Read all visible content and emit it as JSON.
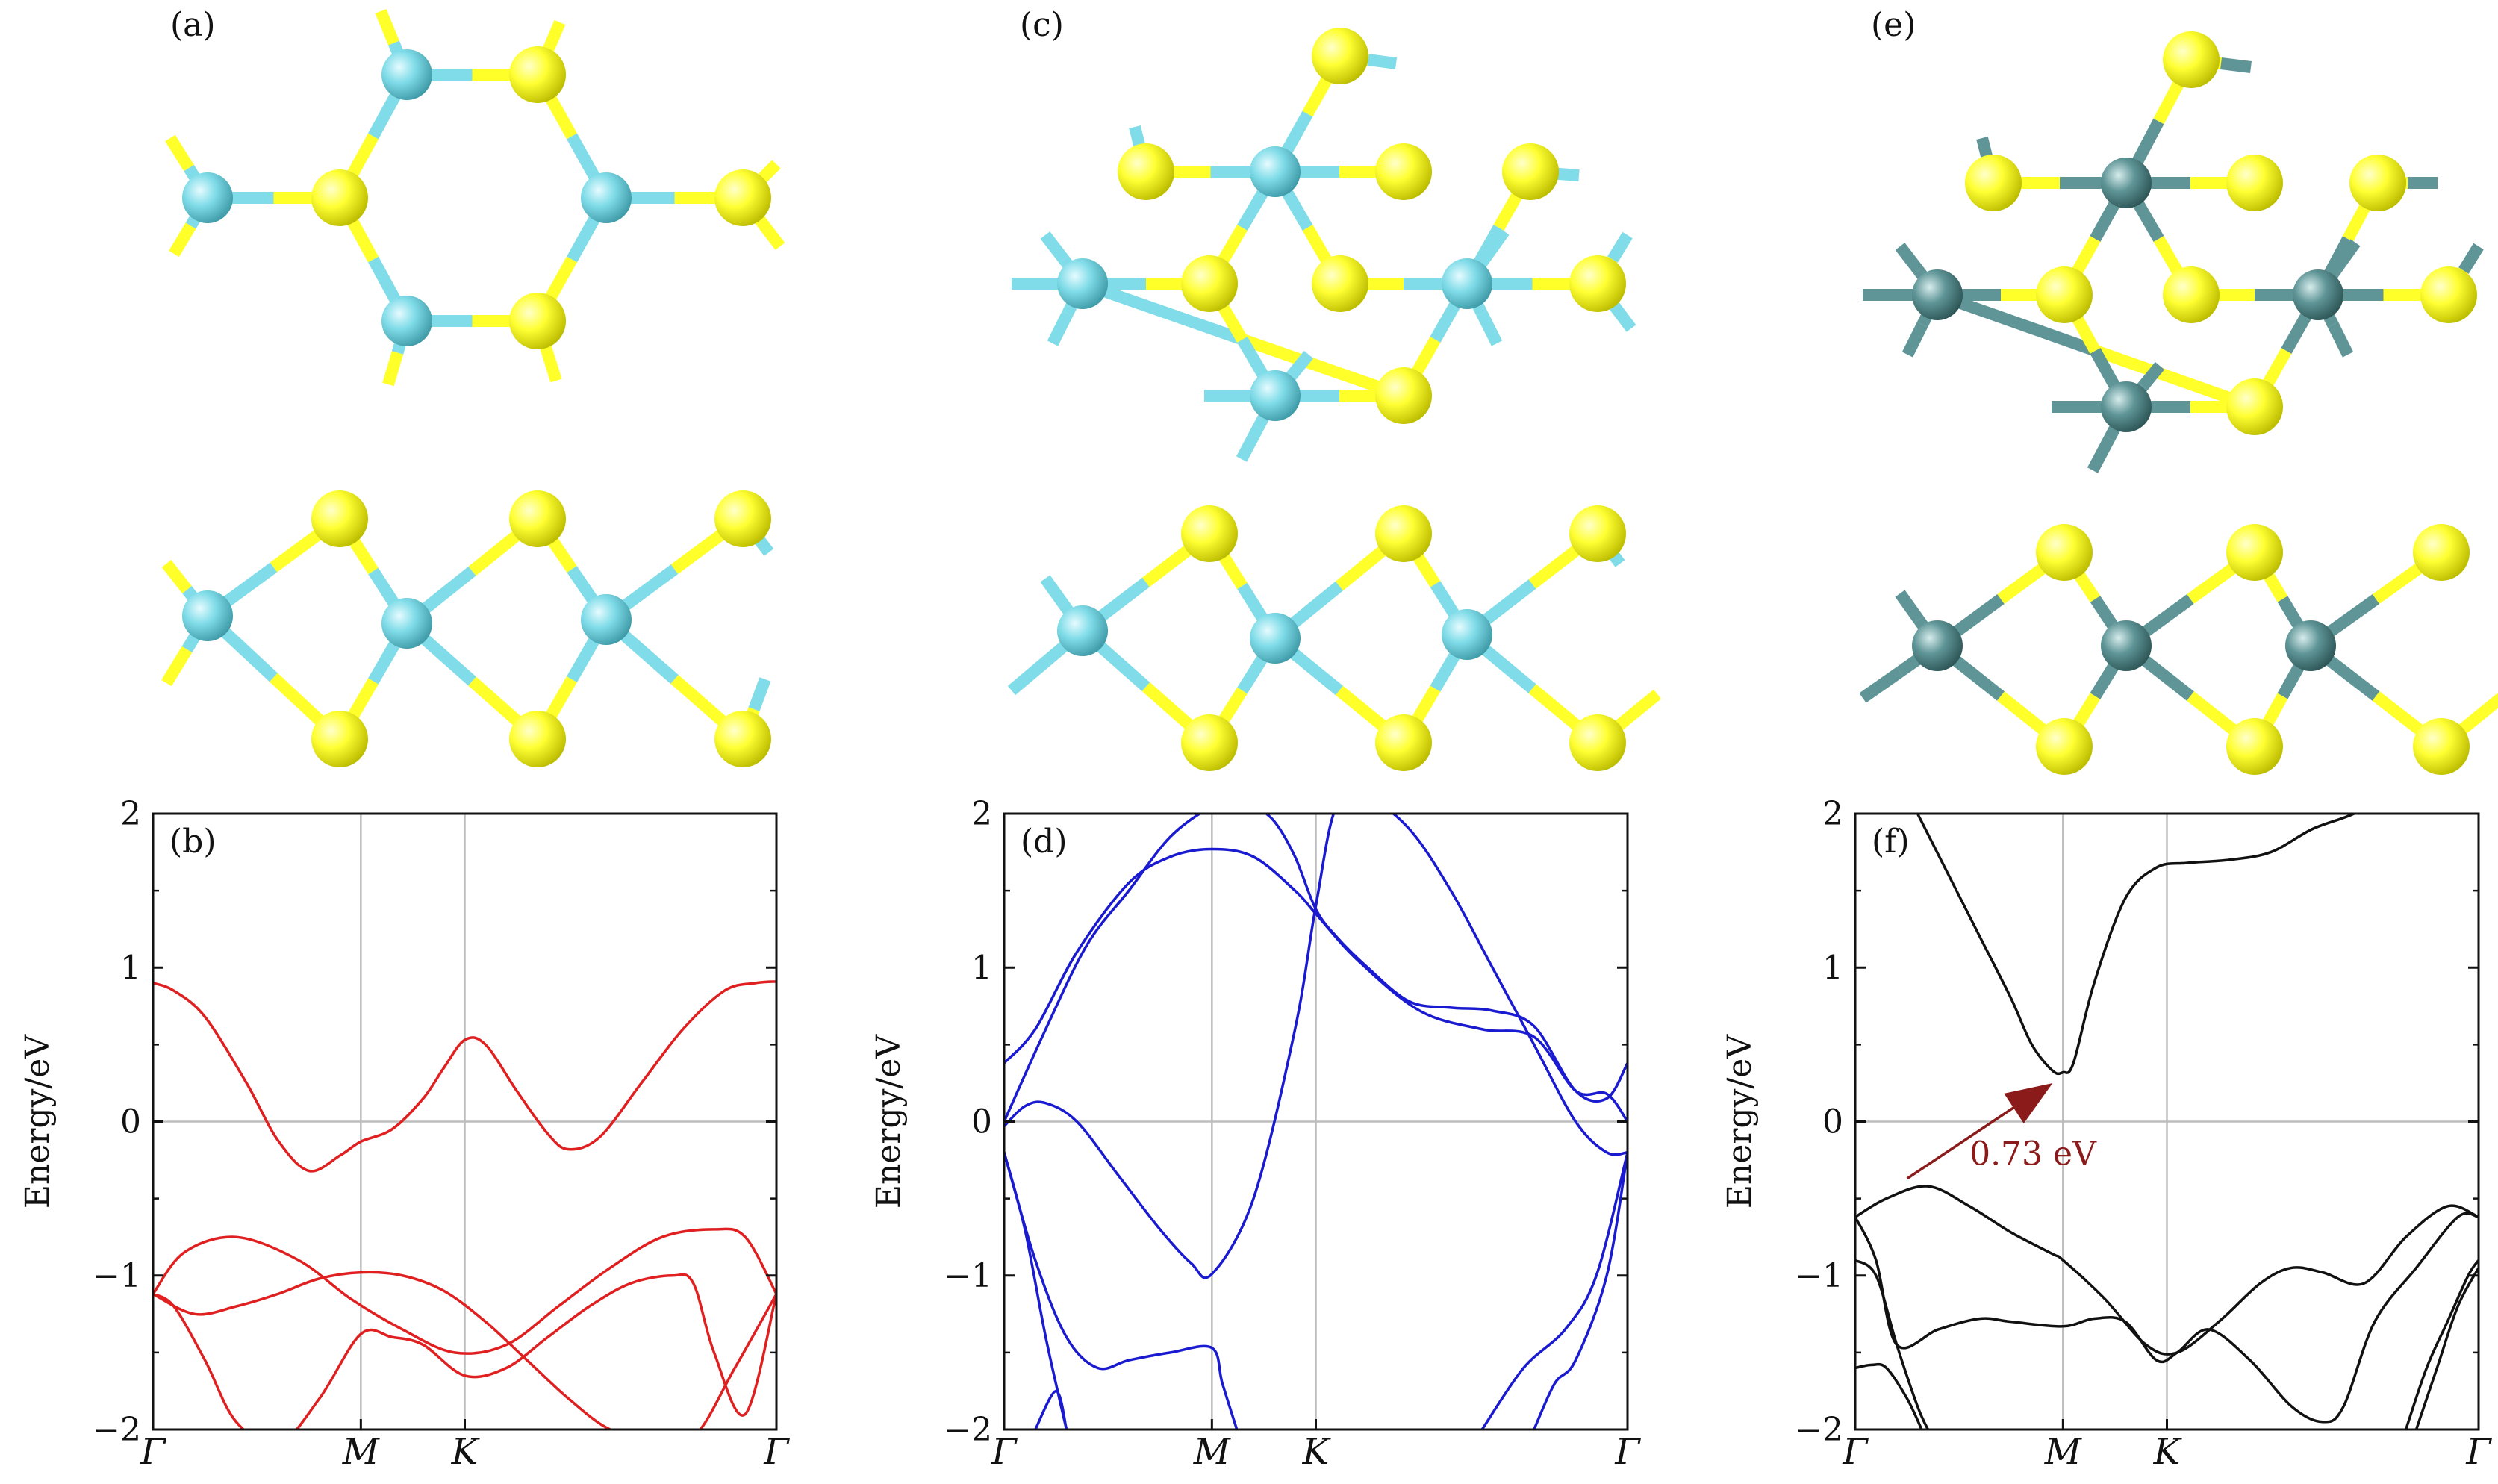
{
  "figure": {
    "panel_labels": [
      "(a)",
      "(c)",
      "(e)",
      "(b)",
      "(d)",
      "(f)"
    ],
    "structures": [
      {
        "label": "(a)",
        "metal_color": "#7fdce8",
        "chalcogen_color": "#ffff2a"
      },
      {
        "label": "(c)",
        "metal_color": "#7fdce8",
        "chalcogen_color": "#ffff2a"
      },
      {
        "label": "(e)",
        "metal_color": "#5f9597",
        "chalcogen_color": "#ffff2a"
      }
    ]
  },
  "chart_data": [
    {
      "type": "line",
      "panel": "(b)",
      "ylabel": "Energy/eV",
      "ylim": [
        -2,
        2
      ],
      "yticks": [
        -2,
        -1,
        0,
        1,
        2
      ],
      "ytick_labels": [
        "−2",
        "−1",
        "0",
        "1",
        "2"
      ],
      "xticks": [
        0,
        1,
        1.5,
        3
      ],
      "xtick_labels": [
        "Γ",
        "M",
        "K",
        "Γ"
      ],
      "xlim": [
        0,
        3
      ],
      "grid": true,
      "color": "#e02020",
      "series": [
        {
          "x": [
            0,
            0.1,
            0.25,
            0.45,
            0.6,
            0.75,
            0.9,
            1.0,
            1.15,
            1.3,
            1.4,
            1.5,
            1.6,
            1.75,
            1.9,
            2.0,
            2.15,
            2.35,
            2.55,
            2.75,
            2.9,
            3.0
          ],
          "y": [
            0.9,
            0.85,
            0.68,
            0.25,
            -0.12,
            -0.32,
            -0.22,
            -0.13,
            -0.05,
            0.15,
            0.35,
            0.53,
            0.5,
            0.2,
            -0.08,
            -0.18,
            -0.1,
            0.25,
            0.6,
            0.85,
            0.9,
            0.91
          ]
        },
        {
          "x": [
            0,
            0.15,
            0.4,
            0.7,
            0.95,
            1.2,
            1.45,
            1.7,
            1.95,
            2.2,
            2.45,
            2.7,
            2.85,
            3.0
          ],
          "y": [
            -1.12,
            -0.85,
            -0.75,
            -0.9,
            -1.15,
            -1.35,
            -1.5,
            -1.45,
            -1.2,
            -0.95,
            -0.75,
            -0.7,
            -0.75,
            -1.12
          ]
        },
        {
          "x": [
            0,
            0.2,
            0.4,
            0.6,
            0.8,
            1.0,
            1.2,
            1.4,
            1.6,
            1.8,
            2.0,
            2.2,
            2.4,
            2.6,
            2.8,
            3.0
          ],
          "y": [
            -1.12,
            -1.25,
            -1.2,
            -1.12,
            -1.02,
            -0.98,
            -1.0,
            -1.1,
            -1.3,
            -1.55,
            -1.8,
            -2.0,
            -2.05,
            -2.05,
            -1.6,
            -1.12
          ]
        },
        {
          "x": [
            0,
            0.1,
            0.25,
            0.4,
            0.6,
            0.8,
            1.0,
            1.15,
            1.3,
            1.5,
            1.7,
            1.9,
            2.1,
            2.3,
            2.5,
            2.6,
            2.7,
            2.85,
            3.0
          ],
          "y": [
            -1.12,
            -1.2,
            -1.55,
            -1.95,
            -2.1,
            -1.8,
            -1.38,
            -1.4,
            -1.45,
            -1.65,
            -1.6,
            -1.4,
            -1.2,
            -1.05,
            -1.0,
            -1.05,
            -1.5,
            -1.9,
            -1.12
          ]
        }
      ]
    },
    {
      "type": "line",
      "panel": "(d)",
      "ylabel": "Energy/eV",
      "ylim": [
        -2,
        2
      ],
      "yticks": [
        -2,
        -1,
        0,
        1,
        2
      ],
      "ytick_labels": [
        "−2",
        "−1",
        "0",
        "1",
        "2"
      ],
      "xticks": [
        0,
        1,
        1.5,
        3
      ],
      "xtick_labels": [
        "Γ",
        "M",
        "K",
        "Γ"
      ],
      "xlim": [
        0,
        3
      ],
      "grid": true,
      "color": "#1a1ad0",
      "series": [
        {
          "x": [
            0,
            0.15,
            0.35,
            0.6,
            0.8,
            1.0,
            1.2,
            1.4,
            1.5,
            1.7,
            2.0,
            2.3,
            2.55,
            2.75,
            2.9,
            3.0
          ],
          "y": [
            0.38,
            0.6,
            1.1,
            1.55,
            1.72,
            1.77,
            1.72,
            1.5,
            1.35,
            1.05,
            0.72,
            0.6,
            0.55,
            0.2,
            0.18,
            0.0
          ]
        },
        {
          "x": [
            0,
            0.2,
            0.4,
            0.6,
            0.8,
            1.0,
            1.1,
            1.2,
            1.3,
            1.4,
            1.5,
            1.6,
            1.75,
            1.95,
            2.15,
            2.35,
            2.55,
            2.75,
            2.9,
            3.0
          ],
          "y": [
            0.0,
            0.6,
            1.15,
            1.5,
            1.85,
            2.05,
            2.1,
            2.05,
            1.95,
            1.72,
            1.38,
            1.2,
            1.0,
            0.78,
            0.74,
            0.72,
            0.62,
            0.2,
            0.15,
            0.38
          ]
        },
        {
          "x": [
            0,
            0.1,
            0.2,
            0.35,
            0.55,
            0.75,
            0.9,
            1.0,
            1.2,
            1.4,
            1.5,
            1.6,
            1.75,
            1.95,
            2.15,
            2.35,
            2.55,
            2.75,
            2.9,
            3.0
          ],
          "y": [
            -0.03,
            0.1,
            0.12,
            0.0,
            -0.35,
            -0.7,
            -0.92,
            -0.99,
            -0.5,
            0.6,
            1.4,
            2.05,
            2.1,
            1.9,
            1.5,
            1.0,
            0.5,
            0.0,
            -0.2,
            -0.2
          ]
        },
        {
          "x": [
            0,
            0.15,
            0.3,
            0.45,
            0.6,
            0.8,
            1.0,
            1.05,
            1.12
          ],
          "y": [
            -0.2,
            -0.9,
            -1.4,
            -1.6,
            -1.55,
            -1.5,
            -1.47,
            -1.7,
            -2.0
          ]
        },
        {
          "x": [
            0,
            0.1,
            0.2,
            0.3
          ],
          "y": [
            -0.2,
            -0.7,
            -1.4,
            -2.0
          ]
        },
        {
          "x": [
            0.15,
            0.25,
            0.3
          ],
          "y": [
            -2.0,
            -1.75,
            -2.0
          ]
        },
        {
          "x": [
            2.3,
            2.5,
            2.7,
            2.85,
            3.0
          ],
          "y": [
            -2.0,
            -1.6,
            -1.35,
            -1.0,
            -0.2
          ]
        },
        {
          "x": [
            2.55,
            2.65,
            2.75,
            2.9,
            3.0
          ],
          "y": [
            -2.0,
            -1.7,
            -1.55,
            -1.0,
            -0.2
          ]
        }
      ]
    },
    {
      "type": "line",
      "panel": "(f)",
      "ylabel": "Energy/eV",
      "ylim": [
        -2,
        2
      ],
      "yticks": [
        -2,
        -1,
        0,
        1,
        2
      ],
      "ytick_labels": [
        "−2",
        "−1",
        "0",
        "1",
        "2"
      ],
      "xticks": [
        0,
        1,
        1.5,
        3
      ],
      "xtick_labels": [
        "Γ",
        "M",
        "K",
        "Γ"
      ],
      "xlim": [
        0,
        3
      ],
      "grid": true,
      "color": "#111111",
      "annotation": {
        "text": "0.73 eV",
        "color": "#8b1a1a",
        "from": [
          0.25,
          -0.37
        ],
        "to": [
          0.95,
          0.25
        ]
      },
      "series": [
        {
          "x": [
            0.3,
            0.45,
            0.6,
            0.75,
            0.85,
            0.95,
            1.0,
            1.05,
            1.15,
            1.3,
            1.45,
            1.6,
            1.8,
            2.0,
            2.2,
            2.4,
            2.6,
            2.8,
            3.0
          ],
          "y": [
            2.0,
            1.6,
            1.2,
            0.8,
            0.5,
            0.33,
            0.32,
            0.38,
            0.9,
            1.45,
            1.65,
            1.68,
            1.7,
            1.75,
            1.9,
            2.0,
            2.15,
            2.3,
            2.45
          ]
        },
        {
          "x": [
            0,
            0.15,
            0.35,
            0.55,
            0.75,
            0.95,
            1.0,
            1.2,
            1.4,
            1.55,
            1.75,
            1.95,
            2.1,
            2.25,
            2.45,
            2.65,
            2.85,
            3.0
          ],
          "y": [
            -0.62,
            -0.5,
            -0.42,
            -0.55,
            -0.72,
            -0.86,
            -0.9,
            -1.15,
            -1.45,
            -1.5,
            -1.3,
            -1.05,
            -0.95,
            -0.98,
            -1.05,
            -0.75,
            -0.55,
            -0.62
          ]
        },
        {
          "x": [
            0,
            0.1,
            0.2,
            0.4,
            0.6,
            0.75,
            1.0,
            1.15,
            1.3,
            1.45,
            1.55,
            1.7,
            1.9,
            2.1,
            2.25,
            2.35,
            2.5,
            2.7,
            2.9,
            3.0
          ],
          "y": [
            -0.62,
            -0.9,
            -1.45,
            -1.35,
            -1.28,
            -1.3,
            -1.33,
            -1.28,
            -1.3,
            -1.55,
            -1.5,
            -1.35,
            -1.55,
            -1.85,
            -1.95,
            -1.85,
            -1.3,
            -0.95,
            -0.62,
            -0.62
          ]
        },
        {
          "x": [
            0,
            0.1,
            0.2,
            0.3,
            0.35
          ],
          "y": [
            -0.9,
            -1.0,
            -1.45,
            -1.85,
            -2.0
          ]
        },
        {
          "x": [
            0,
            0.08,
            0.15,
            0.25,
            0.32
          ],
          "y": [
            -1.6,
            -1.58,
            -1.6,
            -1.8,
            -2.0
          ]
        },
        {
          "x": [
            2.65,
            2.75,
            2.85,
            2.95,
            3.0
          ],
          "y": [
            -2.0,
            -1.6,
            -1.3,
            -1.0,
            -0.9
          ]
        },
        {
          "x": [
            2.7,
            2.8,
            2.9,
            3.0
          ],
          "y": [
            -2.0,
            -1.6,
            -1.2,
            -0.95
          ]
        }
      ]
    }
  ]
}
